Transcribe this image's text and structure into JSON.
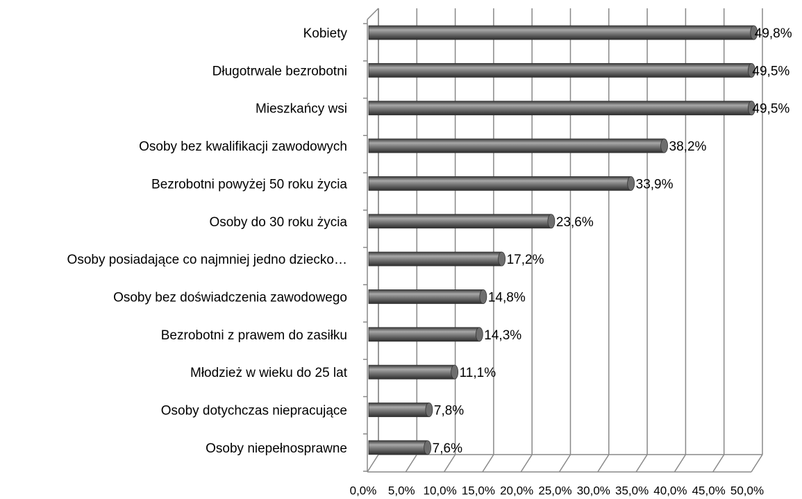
{
  "chart_data": {
    "type": "bar",
    "orientation": "horizontal",
    "categories": [
      "Kobiety",
      "Długotrwale bezrobotni",
      "Mieszkańcy wsi",
      "Osoby bez kwalifikacji zawodowych",
      "Bezrobotni powyżej 50 roku życia",
      "Osoby do 30 roku życia",
      "Osoby posiadające co najmniej jedno dziecko…",
      "Osoby bez doświadczenia zawodowego",
      "Bezrobotni z prawem do zasiłku",
      "Młodzież w wieku do 25 lat",
      "Osoby dotychczas niepracujące",
      "Osoby niepełnosprawne"
    ],
    "values": [
      49.8,
      49.5,
      49.5,
      38.2,
      33.9,
      23.6,
      17.2,
      14.8,
      14.3,
      11.1,
      7.8,
      7.6
    ],
    "value_labels": [
      "49,8%",
      "49,5%",
      "49,5%",
      "38,2%",
      "33,9%",
      "23,6%",
      "17,2%",
      "14,8%",
      "14,3%",
      "11,1%",
      "7,8%",
      "7,6%"
    ],
    "color": "#6e6e6e",
    "xlim": [
      0,
      50
    ],
    "xticks": [
      {
        "value": 0,
        "label": "0,0%"
      },
      {
        "value": 5,
        "label": "5,0%"
      },
      {
        "value": 10,
        "label": "10,0%"
      },
      {
        "value": 15,
        "label": "15,0%"
      },
      {
        "value": 20,
        "label": "20,0%"
      },
      {
        "value": 25,
        "label": "25,0%"
      },
      {
        "value": 30,
        "label": "30,0%"
      },
      {
        "value": 35,
        "label": "35,0%"
      },
      {
        "value": 40,
        "label": "40,0%"
      },
      {
        "value": 45,
        "label": "45,0%"
      },
      {
        "value": 50,
        "label": "50,0%"
      }
    ],
    "grid": true
  }
}
